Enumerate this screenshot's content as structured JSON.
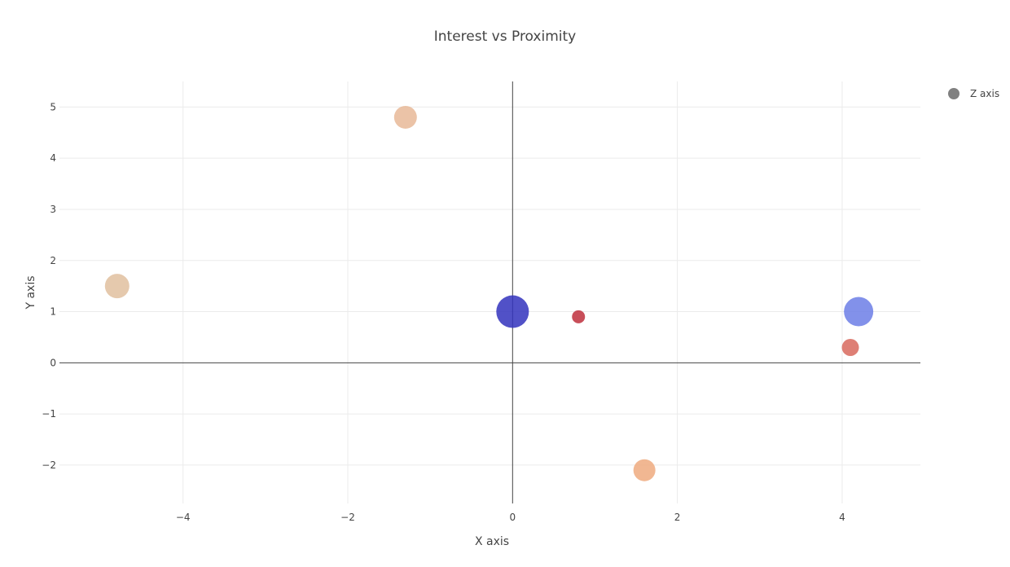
{
  "chart_data": {
    "type": "scatter",
    "title": "Interest vs Proximity",
    "xlabel": "X axis",
    "ylabel": "Y axis",
    "xlim": [
      -5.5,
      4.95
    ],
    "ylim": [
      -2.75,
      5.5
    ],
    "xticks": [
      -4,
      -2,
      0,
      2,
      4
    ],
    "yticks": [
      -2,
      -1,
      0,
      1,
      2,
      3,
      4,
      5
    ],
    "grid": true,
    "zero_lines": true,
    "legend": {
      "position": "top-right",
      "entries": [
        "Z axis"
      ],
      "marker_color": "#808080"
    },
    "series": [
      {
        "name": "Z axis",
        "points": [
          {
            "x": -1.3,
            "y": 4.8,
            "size": 28,
            "color": "#e8b898"
          },
          {
            "x": -4.8,
            "y": 1.5,
            "size": 30,
            "color": "#e1bf9f"
          },
          {
            "x": 0.0,
            "y": 1.0,
            "size": 40,
            "color": "#3232bd"
          },
          {
            "x": 0.8,
            "y": 0.9,
            "size": 16,
            "color": "#be2f3c"
          },
          {
            "x": 4.2,
            "y": 1.0,
            "size": 36,
            "color": "#6c7ee6"
          },
          {
            "x": 4.1,
            "y": 0.3,
            "size": 21,
            "color": "#d8685d"
          },
          {
            "x": 1.6,
            "y": -2.1,
            "size": 27,
            "color": "#eeaa7f"
          }
        ]
      }
    ]
  }
}
